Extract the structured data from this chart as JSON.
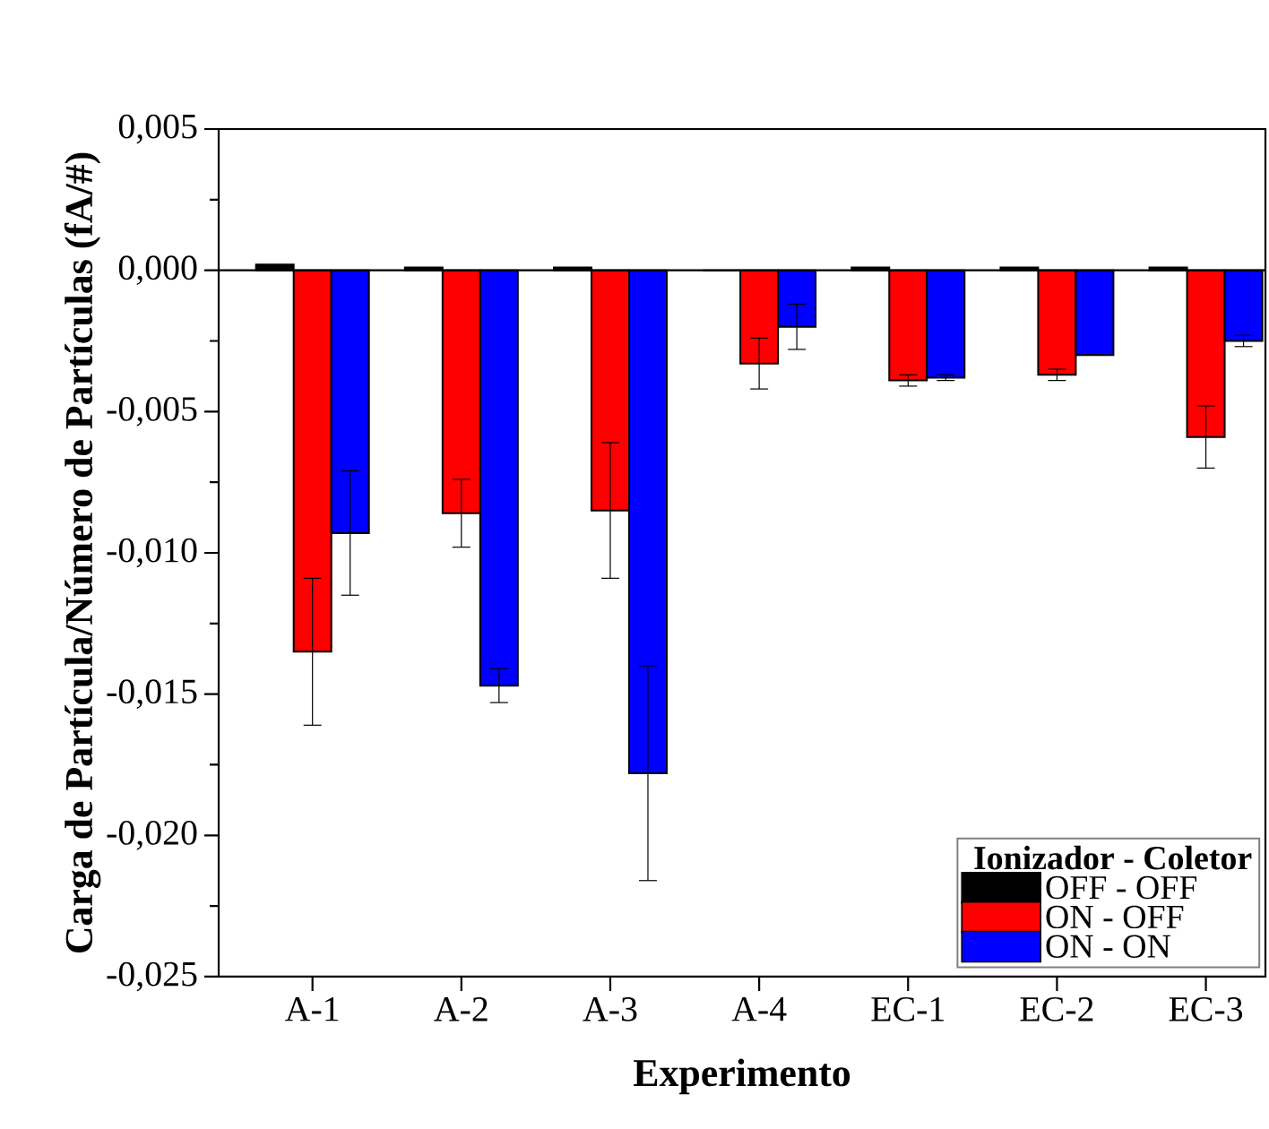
{
  "chart_data": {
    "type": "bar",
    "xlabel": "Experimento",
    "ylabel": "Carga de Partícula/Número de Partículas (fA/#)",
    "legend_title": "Ionizador - Coletor",
    "legend": "bottom right",
    "ref_lines": [
      {
        "axis": "y",
        "value": 0,
        "color": "#000000"
      }
    ],
    "categories": [
      "A-1",
      "A-2",
      "A-3",
      "A-4",
      "EC-1",
      "EC-2",
      "EC-3"
    ],
    "ylim": [
      -0.025,
      0.005
    ],
    "yticks": [
      {
        "value": -0.025,
        "label": "-0,025"
      },
      {
        "value": -0.02,
        "label": "-0,020"
      },
      {
        "value": -0.015,
        "label": "-0,015"
      },
      {
        "value": -0.01,
        "label": "-0,010"
      },
      {
        "value": -0.005,
        "label": "-0,005"
      },
      {
        "value": 0,
        "label": "0,000"
      },
      {
        "value": 0.005,
        "label": "0,005"
      }
    ],
    "series": [
      {
        "name": "OFF - OFF",
        "color": "#000000",
        "values": [
          0.0002,
          0.0001,
          0.0001,
          0,
          0.0001,
          0.0001,
          0.0001
        ]
      },
      {
        "name": "ON - OFF",
        "color": "#ff0000",
        "values": [
          -0.0135,
          -0.0086,
          -0.0085,
          -0.0033,
          -0.0039,
          -0.0037,
          -0.0059
        ],
        "errors": [
          0.0026,
          0.0012,
          0.0024,
          0.0009,
          0.0002,
          0.0002,
          0.0011
        ]
      },
      {
        "name": "ON - ON",
        "color": "#0000ff",
        "values": [
          -0.0093,
          -0.0147,
          -0.0178,
          -0.002,
          -0.0038,
          -0.003,
          -0.0025
        ],
        "errors": [
          0.0022,
          0.0006,
          0.0038,
          0.0008,
          0.0001,
          null,
          0.0002
        ]
      }
    ]
  }
}
